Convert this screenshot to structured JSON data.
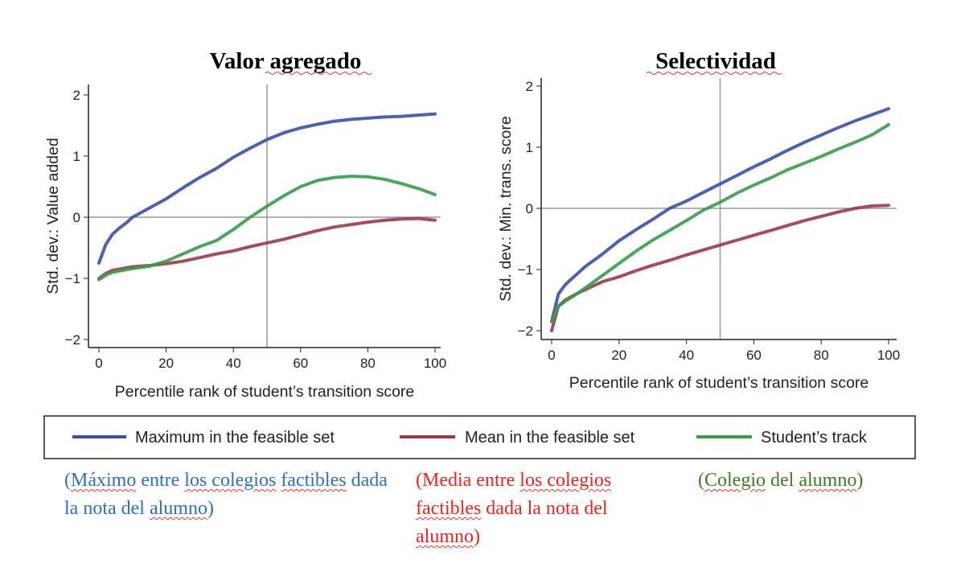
{
  "chart_data": [
    {
      "type": "line",
      "title": "Valor agregado",
      "xlabel": "Percentile rank of student’s transition score",
      "ylabel": "Std. dev.: Value added",
      "xlim": [
        0,
        100
      ],
      "ylim": [
        -2,
        2
      ],
      "xticks": [
        0,
        20,
        40,
        60,
        80,
        100
      ],
      "yticks": [
        -2,
        -1,
        0,
        1,
        2
      ],
      "reference_lines": {
        "x": 50,
        "y": 0
      },
      "x": [
        0,
        2,
        4,
        6,
        8,
        10,
        15,
        20,
        25,
        30,
        35,
        40,
        45,
        50,
        55,
        60,
        65,
        70,
        75,
        80,
        85,
        90,
        95,
        100
      ],
      "series": [
        {
          "name": "Maximum in the feasible set",
          "color": "#3a4fa8",
          "values": [
            -0.75,
            -0.45,
            -0.28,
            -0.18,
            -0.1,
            0.0,
            0.15,
            0.3,
            0.48,
            0.65,
            0.8,
            0.98,
            1.13,
            1.27,
            1.38,
            1.46,
            1.52,
            1.57,
            1.6,
            1.62,
            1.64,
            1.65,
            1.67,
            1.69
          ]
        },
        {
          "name": "Mean in the feasible set",
          "color": "#9b3a4a",
          "values": [
            -1.0,
            -0.92,
            -0.87,
            -0.85,
            -0.83,
            -0.81,
            -0.79,
            -0.76,
            -0.72,
            -0.66,
            -0.6,
            -0.55,
            -0.48,
            -0.42,
            -0.36,
            -0.29,
            -0.22,
            -0.16,
            -0.12,
            -0.08,
            -0.05,
            -0.03,
            -0.02,
            -0.05
          ]
        },
        {
          "name": "Student’s track",
          "color": "#3a9a4a",
          "values": [
            -1.02,
            -0.95,
            -0.9,
            -0.88,
            -0.86,
            -0.84,
            -0.8,
            -0.72,
            -0.6,
            -0.48,
            -0.38,
            -0.2,
            0.0,
            0.18,
            0.35,
            0.5,
            0.6,
            0.65,
            0.67,
            0.66,
            0.62,
            0.55,
            0.47,
            0.37
          ]
        }
      ]
    },
    {
      "type": "line",
      "title": "Selectividad",
      "xlabel": "Percentile rank of student’s transition score",
      "ylabel": "Std. dev.: Min. trans. score",
      "xlim": [
        0,
        100
      ],
      "ylim": [
        -2,
        2
      ],
      "xticks": [
        0,
        20,
        40,
        60,
        80,
        100
      ],
      "yticks": [
        -2,
        -1,
        0,
        1,
        2
      ],
      "reference_lines": {
        "x": 50,
        "y": 0
      },
      "x": [
        0,
        2,
        4,
        6,
        8,
        10,
        15,
        20,
        25,
        30,
        35,
        40,
        45,
        50,
        55,
        60,
        65,
        70,
        75,
        80,
        85,
        90,
        95,
        100
      ],
      "series": [
        {
          "name": "Maximum in the feasible set",
          "color": "#3a4fa8",
          "values": [
            -1.85,
            -1.4,
            -1.25,
            -1.15,
            -1.05,
            -0.95,
            -0.75,
            -0.53,
            -0.35,
            -0.18,
            0.0,
            0.12,
            0.26,
            0.4,
            0.54,
            0.68,
            0.81,
            0.95,
            1.08,
            1.2,
            1.32,
            1.43,
            1.53,
            1.63
          ]
        },
        {
          "name": "Mean in the feasible set",
          "color": "#9b3a4a",
          "values": [
            -2.0,
            -1.6,
            -1.5,
            -1.44,
            -1.38,
            -1.33,
            -1.2,
            -1.12,
            -1.02,
            -0.93,
            -0.85,
            -0.76,
            -0.68,
            -0.6,
            -0.52,
            -0.44,
            -0.36,
            -0.28,
            -0.2,
            -0.13,
            -0.06,
            0.0,
            0.04,
            0.05
          ]
        },
        {
          "name": "Student’s track",
          "color": "#3a9a4a",
          "values": [
            -1.85,
            -1.6,
            -1.52,
            -1.45,
            -1.38,
            -1.3,
            -1.1,
            -0.9,
            -0.7,
            -0.52,
            -0.36,
            -0.2,
            -0.03,
            0.1,
            0.25,
            0.38,
            0.5,
            0.63,
            0.74,
            0.85,
            0.97,
            1.08,
            1.2,
            1.37
          ]
        }
      ]
    }
  ],
  "legend": [
    "Maximum in the feasible set",
    "Mean in the feasible set",
    "Student’s track"
  ],
  "notes": {
    "blue": {
      "color": "#2e6fc0",
      "parts": [
        "(",
        "Máximo",
        " entre ",
        "los colegios",
        " ",
        "factibles",
        " dada la nota del ",
        "alumno",
        ")"
      ]
    },
    "red": {
      "color": "#e8231f",
      "parts": [
        "(Media entre ",
        "los colegios",
        " ",
        "factibles",
        " dada la nota del ",
        "alumno",
        ")"
      ]
    },
    "green": {
      "color": "#3f7a22",
      "parts": [
        "(",
        "Colegio",
        " del ",
        "alumno",
        ")"
      ]
    }
  }
}
